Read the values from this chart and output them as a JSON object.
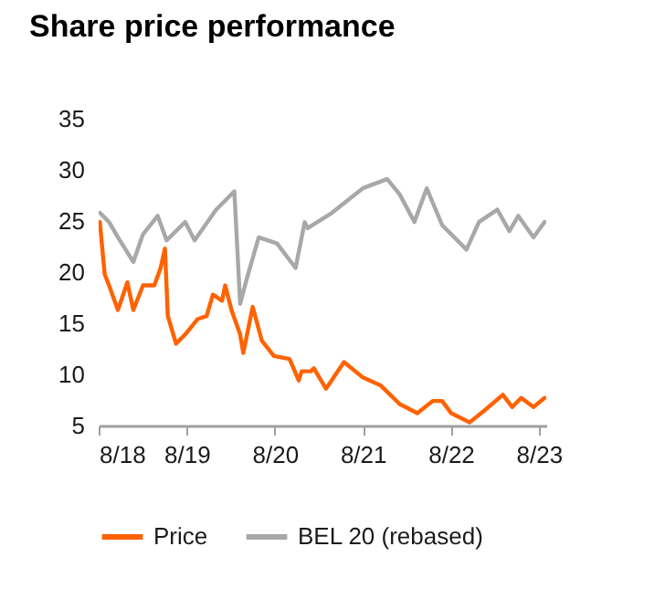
{
  "chart_data": {
    "type": "line",
    "title": "Share price performance",
    "xlim": [
      "2018-08-01",
      "2023-09-01"
    ],
    "xticks": [
      {
        "value": "2018-08-01",
        "label": "8/18"
      },
      {
        "value": "2019-08-01",
        "label": "8/19"
      },
      {
        "value": "2020-08-01",
        "label": "8/20"
      },
      {
        "value": "2021-08-01",
        "label": "8/21"
      },
      {
        "value": "2022-08-01",
        "label": "8/22"
      },
      {
        "value": "2023-08-01",
        "label": "8/23"
      }
    ],
    "ylim": [
      5,
      35
    ],
    "yticks": [
      5,
      10,
      15,
      20,
      25,
      30,
      35
    ],
    "grid": false,
    "legend": "bottom",
    "series": [
      {
        "name": "Price",
        "color": "#ff6200",
        "x": [
          "2018-08-06",
          "2018-08-26",
          "2018-09-13",
          "2018-10-20",
          "2018-11-28",
          "2018-12-23",
          "2019-02-01",
          "2019-03-20",
          "2019-04-15",
          "2019-05-03",
          "2019-05-15",
          "2019-06-18",
          "2019-07-26",
          "2019-09-15",
          "2019-10-23",
          "2019-11-18",
          "2019-12-26",
          "2020-01-08",
          "2020-02-03",
          "2020-03-10",
          "2020-03-23",
          "2020-05-01",
          "2020-06-08",
          "2020-07-28",
          "2020-10-01",
          "2020-11-08",
          "2020-11-20",
          "2020-12-28",
          "2021-01-10",
          "2021-03-01",
          "2021-05-15",
          "2021-08-01",
          "2021-10-15",
          "2022-01-01",
          "2022-03-15",
          "2022-05-18",
          "2022-06-26",
          "2022-08-03",
          "2022-10-18",
          "2022-12-20",
          "2023-03-05",
          "2023-04-13",
          "2023-05-20",
          "2023-07-10",
          "2023-08-25"
        ],
        "values": [
          24.9,
          19.8,
          18.7,
          16.3,
          19.0,
          16.3,
          18.7,
          18.7,
          20.4,
          22.3,
          15.7,
          13.0,
          13.9,
          15.4,
          15.7,
          17.8,
          17.2,
          18.7,
          16.3,
          13.9,
          12.1,
          16.6,
          13.3,
          11.8,
          11.5,
          9.4,
          10.3,
          10.3,
          10.6,
          8.6,
          11.2,
          9.7,
          8.9,
          7.1,
          6.2,
          7.4,
          7.4,
          6.2,
          5.3,
          6.5,
          8.0,
          6.8,
          7.7,
          6.8,
          7.7
        ]
      },
      {
        "name": "BEL 20 (rebased)",
        "color": "#a8a8a8",
        "x": [
          "2018-08-06",
          "2018-09-13",
          "2018-10-20",
          "2018-12-23",
          "2019-02-01",
          "2019-04-03",
          "2019-05-10",
          "2019-07-26",
          "2019-09-03",
          "2019-12-01",
          "2020-02-15",
          "2020-03-10",
          "2020-04-06",
          "2020-05-26",
          "2020-08-10",
          "2020-10-26",
          "2020-12-03",
          "2020-12-15",
          "2021-03-26",
          "2021-08-01",
          "2021-11-10",
          "2022-01-01",
          "2022-03-03",
          "2022-04-23",
          "2022-06-26",
          "2022-10-05",
          "2022-11-26",
          "2023-02-10",
          "2023-04-01",
          "2023-05-08",
          "2023-07-10",
          "2023-08-25"
        ],
        "values": [
          25.8,
          24.9,
          23.4,
          21.0,
          23.7,
          25.5,
          23.1,
          24.9,
          23.1,
          26.1,
          27.9,
          16.9,
          19.3,
          23.4,
          22.8,
          20.4,
          24.9,
          24.3,
          25.8,
          28.2,
          29.1,
          27.6,
          24.9,
          28.2,
          24.6,
          22.2,
          24.9,
          26.1,
          24.0,
          25.5,
          23.4,
          24.9
        ]
      }
    ]
  }
}
